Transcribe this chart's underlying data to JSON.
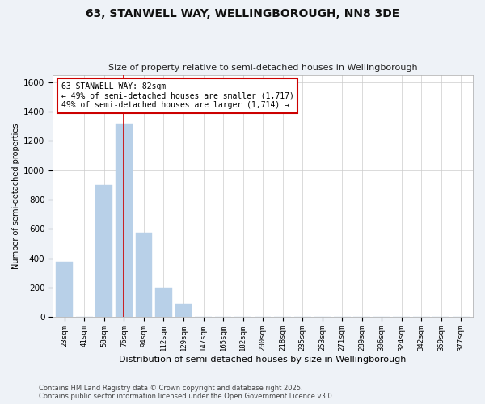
{
  "title": "63, STANWELL WAY, WELLINGBOROUGH, NN8 3DE",
  "subtitle": "Size of property relative to semi-detached houses in Wellingborough",
  "xlabel": "Distribution of semi-detached houses by size in Wellingborough",
  "ylabel": "Number of semi-detached properties",
  "categories": [
    "23sqm",
    "41sqm",
    "58sqm",
    "76sqm",
    "94sqm",
    "112sqm",
    "129sqm",
    "147sqm",
    "165sqm",
    "182sqm",
    "200sqm",
    "218sqm",
    "235sqm",
    "253sqm",
    "271sqm",
    "289sqm",
    "306sqm",
    "324sqm",
    "342sqm",
    "359sqm",
    "377sqm"
  ],
  "values": [
    375,
    0,
    900,
    1315,
    575,
    200,
    90,
    0,
    0,
    0,
    0,
    0,
    0,
    0,
    0,
    0,
    0,
    0,
    0,
    0,
    0
  ],
  "bar_color": "#b8d0e8",
  "bar_edge_color": "#b8d0e8",
  "annotation_box_color": "#ffffff",
  "annotation_border_color": "#cc0000",
  "vline_color": "#cc0000",
  "vline_x": 3.0,
  "annotation_text_line1": "63 STANWELL WAY: 82sqm",
  "annotation_text_line2": "← 49% of semi-detached houses are smaller (1,717)",
  "annotation_text_line3": "49% of semi-detached houses are larger (1,714) →",
  "ylim": [
    0,
    1650
  ],
  "yticks": [
    0,
    200,
    400,
    600,
    800,
    1000,
    1200,
    1400,
    1600
  ],
  "footer_line1": "Contains HM Land Registry data © Crown copyright and database right 2025.",
  "footer_line2": "Contains public sector information licensed under the Open Government Licence v3.0.",
  "background_color": "#eef2f7",
  "plot_background_color": "#ffffff",
  "grid_color": "#cccccc"
}
